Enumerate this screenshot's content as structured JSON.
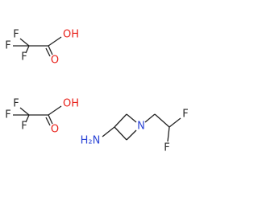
{
  "molecules": [
    {
      "atoms": [
        "F",
        "F",
        "F",
        "OH",
        "O"
      ]
    },
    {
      "atoms": [
        "F",
        "F",
        "F",
        "OH",
        "O"
      ]
    },
    {
      "atoms": [
        "H₂N",
        "N",
        "F",
        "F"
      ]
    }
  ]
}
